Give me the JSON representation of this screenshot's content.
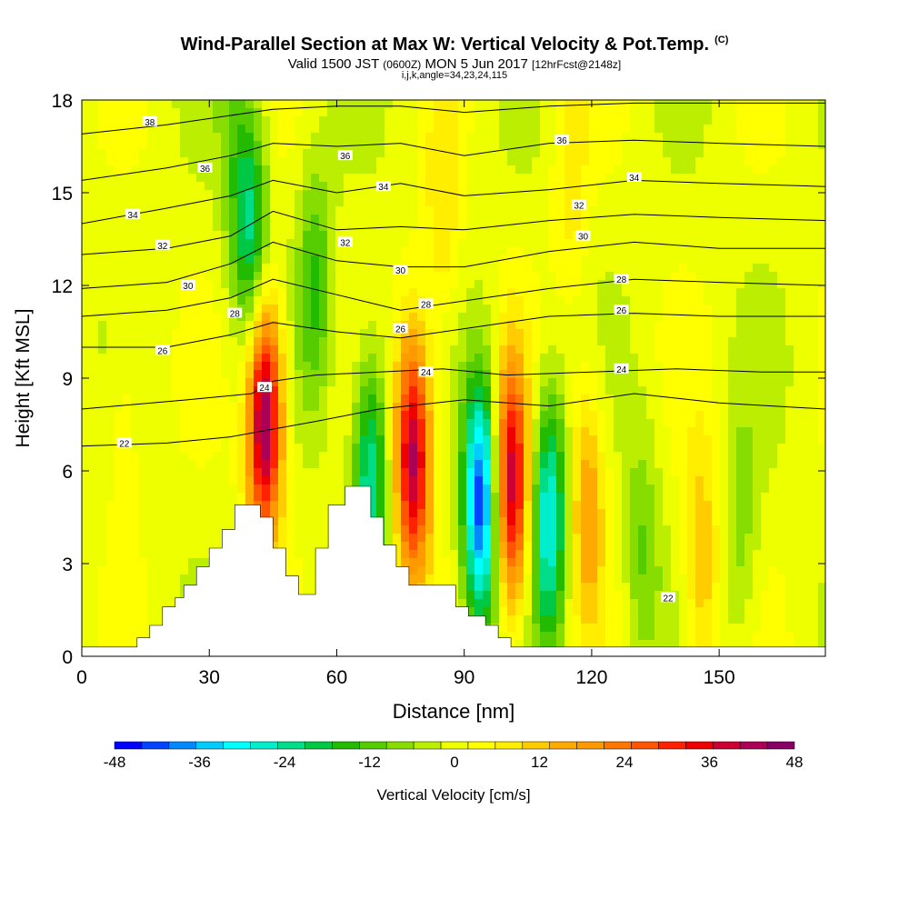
{
  "header": {
    "title": "Wind-Parallel Section at Max W: Vertical Velocity & Pot.Temp.",
    "copyright": "(C)",
    "valid_prefix": "Valid 1500 JST",
    "valid_utc": "(0600Z)",
    "valid_date": "MON 5 Jun 2017",
    "forecast": "[12hrFcst@2148z]",
    "indices": "i,j,k,angle=34,23,24,115"
  },
  "chart_data": {
    "type": "heatmap",
    "xlabel": "Distance [nm]",
    "ylabel": "Height [Kft MSL]",
    "xlim": [
      0,
      175
    ],
    "ylim": [
      0,
      18
    ],
    "x_ticks": [
      0,
      30,
      60,
      90,
      120,
      150
    ],
    "y_ticks": [
      0,
      3,
      6,
      9,
      12,
      15,
      18
    ],
    "colorbar": {
      "label": "Vertical Velocity [cm/s]",
      "min": -48,
      "max": 48,
      "step": 4,
      "tick_labels": [
        "-48",
        "-36",
        "-24",
        "-12",
        "0",
        "12",
        "24",
        "36",
        "48"
      ],
      "colors": [
        "#0000ff",
        "#0044ff",
        "#0088ff",
        "#00ccff",
        "#00ffff",
        "#00eecc",
        "#00dd88",
        "#00c844",
        "#22bb00",
        "#55cc00",
        "#88dd00",
        "#bbee00",
        "#eeff00",
        "#ffff00",
        "#ffee00",
        "#ffcc00",
        "#ffaa00",
        "#ff9900",
        "#ff7700",
        "#ff5500",
        "#ff2200",
        "#ee0000",
        "#cc0033",
        "#aa0055",
        "#880066"
      ]
    },
    "updrafts": [
      {
        "x": 43,
        "z": 7.8,
        "w": 48
      },
      {
        "x": 78,
        "z": 6.5,
        "w": 42
      },
      {
        "x": 101,
        "z": 5.5,
        "w": 40
      },
      {
        "x": 119,
        "z": 5.0,
        "w": 18
      },
      {
        "x": 146,
        "z": 3.0,
        "w": 14
      },
      {
        "x": 85,
        "z": 14,
        "w": 9
      },
      {
        "x": 115,
        "z": 15.5,
        "w": 8
      },
      {
        "x": 10,
        "z": 7.5,
        "w": 6
      }
    ],
    "downdrafts": [
      {
        "x": 94,
        "z": 5.0,
        "w": -44
      },
      {
        "x": 110,
        "z": 4.5,
        "w": -30
      },
      {
        "x": 68,
        "z": 5.8,
        "w": -26
      },
      {
        "x": 55,
        "z": 12.0,
        "w": -14
      },
      {
        "x": 40,
        "z": 13.5,
        "w": -22
      },
      {
        "x": 132,
        "z": 3.5,
        "w": -10
      },
      {
        "x": 155,
        "z": 4.0,
        "w": -8
      },
      {
        "x": 36,
        "z": 16.5,
        "w": -8
      }
    ],
    "terrain": [
      [
        0,
        0.3
      ],
      [
        13,
        0.3
      ],
      [
        13,
        0.6
      ],
      [
        16,
        0.6
      ],
      [
        16,
        1.0
      ],
      [
        19,
        1.0
      ],
      [
        19,
        1.6
      ],
      [
        22,
        1.6
      ],
      [
        22,
        1.9
      ],
      [
        24,
        1.9
      ],
      [
        24,
        2.3
      ],
      [
        27,
        2.3
      ],
      [
        27,
        2.9
      ],
      [
        30,
        2.9
      ],
      [
        30,
        3.5
      ],
      [
        33,
        3.5
      ],
      [
        33,
        4.1
      ],
      [
        36,
        4.1
      ],
      [
        36,
        4.9
      ],
      [
        42,
        4.9
      ],
      [
        42,
        4.5
      ],
      [
        45,
        4.5
      ],
      [
        45,
        3.5
      ],
      [
        48,
        3.5
      ],
      [
        48,
        2.6
      ],
      [
        51,
        2.6
      ],
      [
        51,
        2.0
      ],
      [
        55,
        2.0
      ],
      [
        55,
        3.5
      ],
      [
        58,
        3.5
      ],
      [
        58,
        4.9
      ],
      [
        62,
        4.9
      ],
      [
        62,
        5.5
      ],
      [
        68,
        5.5
      ],
      [
        68,
        4.5
      ],
      [
        71,
        4.5
      ],
      [
        71,
        3.6
      ],
      [
        74,
        3.6
      ],
      [
        74,
        2.9
      ],
      [
        77,
        2.9
      ],
      [
        77,
        2.3
      ],
      [
        88,
        2.3
      ],
      [
        88,
        1.6
      ],
      [
        91,
        1.6
      ],
      [
        91,
        1.3
      ],
      [
        95,
        1.3
      ],
      [
        95,
        1.0
      ],
      [
        98,
        1.0
      ],
      [
        98,
        0.6
      ],
      [
        101,
        0.6
      ],
      [
        101,
        0.3
      ],
      [
        175,
        0.3
      ]
    ],
    "isentropes": [
      {
        "level": 22,
        "label": "22",
        "points": [
          [
            0,
            6.8
          ],
          [
            20,
            6.9
          ],
          [
            35,
            7.1
          ],
          [
            55,
            7.6
          ],
          [
            70,
            8.0
          ],
          [
            90,
            8.3
          ],
          [
            110,
            8.1
          ],
          [
            130,
            8.5
          ],
          [
            150,
            8.2
          ],
          [
            175,
            8.0
          ]
        ]
      },
      {
        "level": 24,
        "label": "24",
        "points": [
          [
            0,
            8.0
          ],
          [
            25,
            8.3
          ],
          [
            40,
            8.5
          ],
          [
            45,
            8.9
          ],
          [
            55,
            9.1
          ],
          [
            70,
            9.2
          ],
          [
            85,
            9.3
          ],
          [
            100,
            9.1
          ],
          [
            120,
            9.2
          ],
          [
            140,
            9.3
          ],
          [
            160,
            9.2
          ],
          [
            175,
            9.2
          ]
        ]
      },
      {
        "level": 26,
        "label": "26",
        "points": [
          [
            0,
            10.0
          ],
          [
            20,
            10.0
          ],
          [
            35,
            10.4
          ],
          [
            45,
            10.8
          ],
          [
            60,
            10.5
          ],
          [
            75,
            10.3
          ],
          [
            90,
            10.6
          ],
          [
            110,
            11.0
          ],
          [
            130,
            11.1
          ],
          [
            150,
            11.0
          ],
          [
            175,
            11.0
          ]
        ]
      },
      {
        "level": 28,
        "label": "28",
        "points": [
          [
            0,
            11.0
          ],
          [
            20,
            11.2
          ],
          [
            35,
            11.6
          ],
          [
            45,
            12.2
          ],
          [
            60,
            11.7
          ],
          [
            75,
            11.2
          ],
          [
            90,
            11.5
          ],
          [
            110,
            11.9
          ],
          [
            130,
            12.2
          ],
          [
            150,
            12.1
          ],
          [
            175,
            12.0
          ]
        ]
      },
      {
        "level": 30,
        "label": "30",
        "points": [
          [
            0,
            11.9
          ],
          [
            20,
            12.1
          ],
          [
            35,
            12.7
          ],
          [
            45,
            13.4
          ],
          [
            60,
            12.8
          ],
          [
            75,
            12.6
          ],
          [
            90,
            12.6
          ],
          [
            110,
            13.1
          ],
          [
            130,
            13.4
          ],
          [
            150,
            13.2
          ],
          [
            175,
            13.2
          ]
        ]
      },
      {
        "level": 32,
        "label": "32",
        "points": [
          [
            0,
            13.0
          ],
          [
            20,
            13.2
          ],
          [
            35,
            13.6
          ],
          [
            45,
            14.4
          ],
          [
            60,
            13.8
          ],
          [
            75,
            13.9
          ],
          [
            90,
            13.8
          ],
          [
            110,
            14.1
          ],
          [
            130,
            14.3
          ],
          [
            150,
            14.2
          ],
          [
            175,
            14.1
          ]
        ]
      },
      {
        "level": 34,
        "label": "34",
        "points": [
          [
            0,
            14.0
          ],
          [
            20,
            14.5
          ],
          [
            35,
            14.9
          ],
          [
            45,
            15.4
          ],
          [
            60,
            15.0
          ],
          [
            75,
            15.3
          ],
          [
            90,
            14.9
          ],
          [
            110,
            15.1
          ],
          [
            130,
            15.4
          ],
          [
            150,
            15.3
          ],
          [
            175,
            15.2
          ]
        ]
      },
      {
        "level": 36,
        "label": "36",
        "points": [
          [
            0,
            15.4
          ],
          [
            20,
            15.8
          ],
          [
            35,
            16.2
          ],
          [
            45,
            16.6
          ],
          [
            60,
            16.5
          ],
          [
            75,
            16.6
          ],
          [
            90,
            16.2
          ],
          [
            110,
            16.6
          ],
          [
            130,
            16.7
          ],
          [
            150,
            16.6
          ],
          [
            175,
            16.5
          ]
        ]
      },
      {
        "level": 38,
        "label": "38",
        "points": [
          [
            0,
            16.9
          ],
          [
            20,
            17.2
          ],
          [
            35,
            17.5
          ],
          [
            45,
            17.7
          ],
          [
            60,
            17.8
          ],
          [
            75,
            17.8
          ],
          [
            90,
            17.6
          ],
          [
            110,
            17.8
          ],
          [
            130,
            17.9
          ],
          [
            150,
            17.9
          ],
          [
            175,
            17.9
          ]
        ]
      }
    ],
    "contour_labels": [
      {
        "text": "38",
        "x": 16,
        "z": 17.3
      },
      {
        "text": "36",
        "x": 29,
        "z": 15.8
      },
      {
        "text": "34",
        "x": 12,
        "z": 14.3
      },
      {
        "text": "32",
        "x": 19,
        "z": 13.3
      },
      {
        "text": "30",
        "x": 25,
        "z": 12.0
      },
      {
        "text": "28",
        "x": 36,
        "z": 11.1
      },
      {
        "text": "26",
        "x": 19,
        "z": 9.9
      },
      {
        "text": "24",
        "x": 43,
        "z": 8.7
      },
      {
        "text": "22",
        "x": 10,
        "z": 6.9
      },
      {
        "text": "36",
        "x": 62,
        "z": 16.2
      },
      {
        "text": "34",
        "x": 71,
        "z": 15.2
      },
      {
        "text": "32",
        "x": 62,
        "z": 13.4
      },
      {
        "text": "30",
        "x": 75,
        "z": 12.5
      },
      {
        "text": "28",
        "x": 81,
        "z": 11.4
      },
      {
        "text": "26",
        "x": 75,
        "z": 10.6
      },
      {
        "text": "24",
        "x": 81,
        "z": 9.2
      },
      {
        "text": "36",
        "x": 113,
        "z": 16.7
      },
      {
        "text": "34",
        "x": 130,
        "z": 15.5
      },
      {
        "text": "32",
        "x": 117,
        "z": 14.6
      },
      {
        "text": "30",
        "x": 118,
        "z": 13.6
      },
      {
        "text": "28",
        "x": 127,
        "z": 12.2
      },
      {
        "text": "26",
        "x": 127,
        "z": 11.2
      },
      {
        "text": "24",
        "x": 127,
        "z": 9.3
      },
      {
        "text": "22",
        "x": 138,
        "z": 1.9
      }
    ]
  }
}
